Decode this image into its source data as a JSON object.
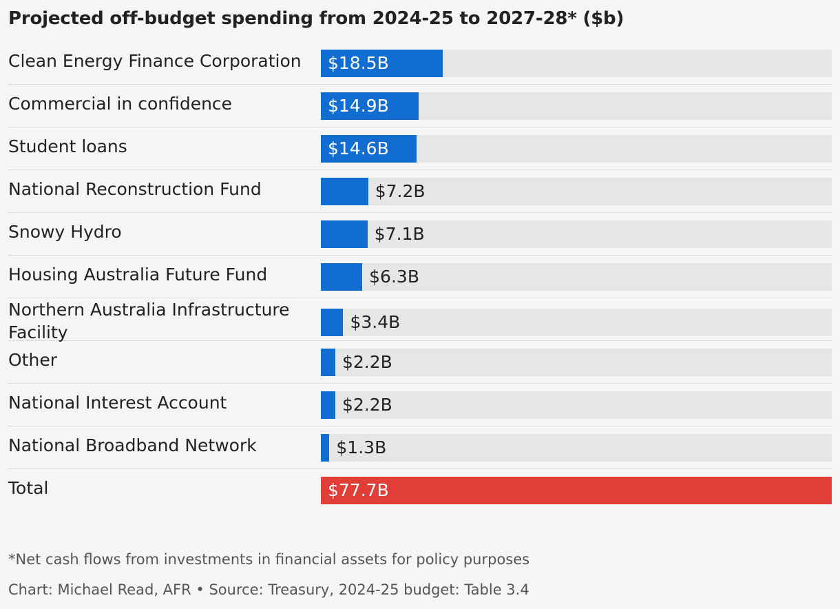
{
  "chart_data": {
    "type": "bar",
    "orientation": "horizontal",
    "title": "Projected off-budget spending from 2024-25 to 2027-28* ($b)",
    "categories": [
      "Clean Energy Finance Corporation",
      "Commercial in confidence",
      "Student loans",
      "National Reconstruction Fund",
      "Snowy Hydro",
      "Housing Australia Future Fund",
      "Northern Australia Infrastructure Facility",
      "Other",
      "National Interest Account",
      "National Broadband Network",
      "Total"
    ],
    "values": [
      18.5,
      14.9,
      14.6,
      7.2,
      7.1,
      6.3,
      3.4,
      2.2,
      2.2,
      1.3,
      77.7
    ],
    "value_labels": [
      "$18.5B",
      "$14.9B",
      "$14.6B",
      "$7.2B",
      "$7.1B",
      "$6.3B",
      "$3.4B",
      "$2.2B",
      "$2.2B",
      "$1.3B",
      "$77.7B"
    ],
    "xlim": [
      0,
      77.7
    ],
    "colors": {
      "bar": "#116dd0",
      "total_bar": "#e03e36",
      "track": "#e6e6e6"
    },
    "grid": false,
    "legend": "none"
  },
  "footnote": "*Net cash flows from investments in financial assets for policy purposes",
  "credit": "Chart: Michael Read, AFR • Source: Treasury, 2024-25 budget: Table 3.4"
}
